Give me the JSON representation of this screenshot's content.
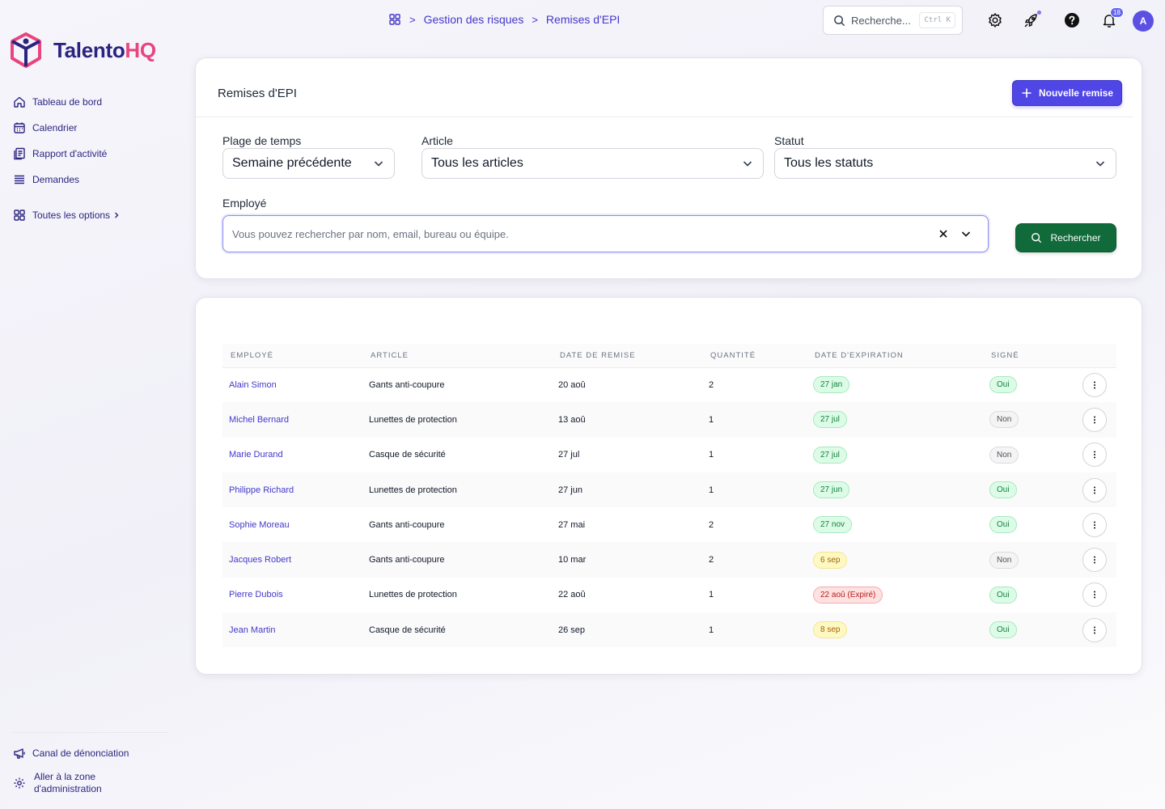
{
  "app": {
    "brand_part1": "Talento",
    "brand_part2": "HQ",
    "brand_color": "#2b2380",
    "brand_accent": "#e8457f"
  },
  "sidebar": {
    "items": [
      {
        "label": "Tableau de bord",
        "icon": "home-icon"
      },
      {
        "label": "Calendrier",
        "icon": "calendar-icon"
      },
      {
        "label": "Rapport d'activité",
        "icon": "report-icon"
      },
      {
        "label": "Demandes",
        "icon": "list-icon"
      }
    ],
    "all_options": "Toutes les options",
    "bottom": [
      {
        "label": "Canal de dénonciation",
        "icon": "megaphone-icon"
      },
      {
        "label_line1": "Aller à la zone",
        "label_line2": "d'administration",
        "icon": "gear-icon"
      }
    ]
  },
  "breadcrumb": {
    "items": [
      "Gestion des risques",
      "Remises d'EPI"
    ]
  },
  "topbar": {
    "search_placeholder": "Recherche...",
    "search_shortcut": "Ctrl K",
    "notifications_count": "18",
    "avatar_initial": "A"
  },
  "filters": {
    "title": "Remises d'EPI",
    "new_button": "Nouvelle remise",
    "time_range_label": "Plage de temps",
    "time_range_value": "Semaine précédente",
    "article_label": "Article",
    "article_value": "Tous les articles",
    "status_label": "Statut",
    "status_value": "Tous les statuts",
    "employee_label": "Employé",
    "employee_placeholder": "Vous pouvez rechercher par nom, email, bureau ou équipe.",
    "search_button": "Rechercher",
    "accent_primary": "#4f46e5",
    "accent_search": "#116a3a"
  },
  "table": {
    "headers": [
      "EMPLOYÉ",
      "ARTICLE",
      "DATE DE REMISE",
      "QUANTITÉ",
      "DATE D'EXPIRATION",
      "SIGNÉ"
    ],
    "rows": [
      {
        "employee": "Alain Simon",
        "article": "Gants anti-coupure",
        "date": "20 aoû",
        "qty": "2",
        "expiry": "27 jan",
        "expiry_status": "green",
        "signed": "Oui"
      },
      {
        "employee": "Michel Bernard",
        "article": "Lunettes de protection",
        "date": "13 aoû",
        "qty": "1",
        "expiry": "27 jul",
        "expiry_status": "green",
        "signed": "Non"
      },
      {
        "employee": "Marie Durand",
        "article": "Casque de sécurité",
        "date": "27 jul",
        "qty": "1",
        "expiry": "27 jul",
        "expiry_status": "green",
        "signed": "Non"
      },
      {
        "employee": "Philippe Richard",
        "article": "Lunettes de protection",
        "date": "27 jun",
        "qty": "1",
        "expiry": "27 jun",
        "expiry_status": "green",
        "signed": "Oui"
      },
      {
        "employee": "Sophie Moreau",
        "article": "Gants anti-coupure",
        "date": "27 mai",
        "qty": "2",
        "expiry": "27 nov",
        "expiry_status": "green",
        "signed": "Oui"
      },
      {
        "employee": "Jacques Robert",
        "article": "Gants anti-coupure",
        "date": "10 mar",
        "qty": "2",
        "expiry": "6 sep",
        "expiry_status": "yellow",
        "signed": "Non"
      },
      {
        "employee": "Pierre Dubois",
        "article": "Lunettes de protection",
        "date": "22 aoû",
        "qty": "1",
        "expiry": "22 aoû (Expiré)",
        "expiry_status": "red",
        "signed": "Oui"
      },
      {
        "employee": "Jean Martin",
        "article": "Casque de sécurité",
        "date": "26 sep",
        "qty": "1",
        "expiry": "8 sep",
        "expiry_status": "yellow",
        "signed": "Oui"
      }
    ]
  }
}
